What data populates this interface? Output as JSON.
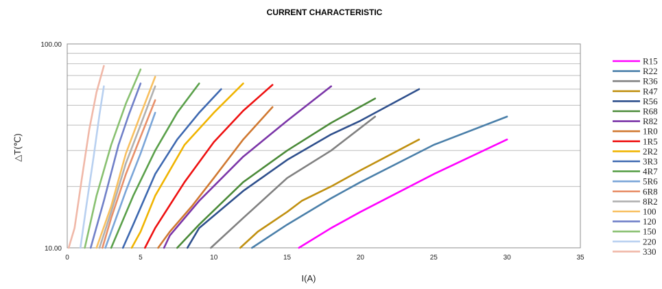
{
  "chart_data": {
    "type": "line",
    "title": "CURRENT CHARACTERISTIC",
    "xlabel": "I(A)",
    "ylabel": "△T(℃)",
    "xlim": [
      0,
      35
    ],
    "ylim": [
      10,
      100
    ],
    "yscale": "log",
    "x_ticks": [
      "0",
      "5",
      "10",
      "15",
      "20",
      "25",
      "30",
      "35"
    ],
    "y_ticks": [
      "10.00",
      "100.00"
    ],
    "grid": "horizontal",
    "legend_position": "right",
    "series": [
      {
        "name": "R15",
        "color": "#ff00ff",
        "points": [
          [
            15.8,
            10
          ],
          [
            18,
            12.5
          ],
          [
            20,
            15
          ],
          [
            25,
            23
          ],
          [
            30,
            34
          ]
        ]
      },
      {
        "name": "R22",
        "color": "#4a7fa9",
        "points": [
          [
            12.6,
            10
          ],
          [
            15,
            13
          ],
          [
            18,
            17.5
          ],
          [
            20,
            21
          ],
          [
            25,
            32
          ],
          [
            30,
            44
          ]
        ]
      },
      {
        "name": "R36",
        "color": "#808080",
        "points": [
          [
            9.8,
            10
          ],
          [
            12,
            14
          ],
          [
            15,
            22
          ],
          [
            18,
            30
          ],
          [
            21,
            44
          ]
        ]
      },
      {
        "name": "R47",
        "color": "#c09010",
        "points": [
          [
            11.8,
            10
          ],
          [
            13,
            12
          ],
          [
            15,
            15
          ],
          [
            16,
            17
          ],
          [
            18,
            20
          ],
          [
            20,
            24
          ],
          [
            24,
            34
          ]
        ]
      },
      {
        "name": "R56",
        "color": "#2e4f8c",
        "points": [
          [
            8.2,
            10
          ],
          [
            9,
            12.5
          ],
          [
            12,
            19
          ],
          [
            15,
            27
          ],
          [
            18,
            36
          ],
          [
            20,
            42
          ],
          [
            24,
            60
          ]
        ]
      },
      {
        "name": "R68",
        "color": "#4a8a38",
        "points": [
          [
            7.5,
            10
          ],
          [
            9,
            13
          ],
          [
            12,
            21
          ],
          [
            15,
            30
          ],
          [
            18,
            41
          ],
          [
            21,
            54
          ]
        ]
      },
      {
        "name": "R82",
        "color": "#7b35a8",
        "points": [
          [
            6.6,
            10
          ],
          [
            7,
            11.5
          ],
          [
            9,
            17
          ],
          [
            12,
            28
          ],
          [
            15,
            42
          ],
          [
            18,
            62
          ]
        ]
      },
      {
        "name": "1R0",
        "color": "#d07830",
        "points": [
          [
            6.2,
            10
          ],
          [
            7,
            12
          ],
          [
            8.5,
            16
          ],
          [
            10,
            22
          ],
          [
            12,
            34
          ],
          [
            14,
            49
          ]
        ]
      },
      {
        "name": "1R5",
        "color": "#ee1010",
        "points": [
          [
            5.3,
            10
          ],
          [
            6,
            12.5
          ],
          [
            8,
            21
          ],
          [
            10,
            33
          ],
          [
            12,
            47
          ],
          [
            14,
            63
          ]
        ]
      },
      {
        "name": "2R2",
        "color": "#f0b400",
        "points": [
          [
            4.4,
            10
          ],
          [
            5,
            12
          ],
          [
            6,
            18
          ],
          [
            8,
            32
          ],
          [
            10,
            46
          ],
          [
            12,
            64
          ]
        ]
      },
      {
        "name": "3R3",
        "color": "#3d68b0",
        "points": [
          [
            3.8,
            10
          ],
          [
            4.5,
            13
          ],
          [
            6,
            23
          ],
          [
            7.5,
            34
          ],
          [
            9,
            46
          ],
          [
            10.5,
            60
          ]
        ]
      },
      {
        "name": "4R7",
        "color": "#5aa04a",
        "points": [
          [
            3,
            10
          ],
          [
            4.5,
            18
          ],
          [
            6,
            30
          ],
          [
            7.5,
            46
          ],
          [
            9,
            64
          ]
        ]
      },
      {
        "name": "5R6",
        "color": "#7aa5d8",
        "points": [
          [
            2.6,
            10
          ],
          [
            4,
            19
          ],
          [
            5,
            29
          ],
          [
            6,
            46
          ]
        ]
      },
      {
        "name": "6R8",
        "color": "#e8906a",
        "points": [
          [
            2.4,
            10
          ],
          [
            3,
            14
          ],
          [
            4,
            23
          ],
          [
            5,
            35
          ],
          [
            6,
            53
          ]
        ]
      },
      {
        "name": "8R2",
        "color": "#b0b0b0",
        "points": [
          [
            2.2,
            10
          ],
          [
            3,
            15
          ],
          [
            4,
            26
          ],
          [
            5,
            40
          ],
          [
            6,
            62
          ]
        ]
      },
      {
        "name": "100",
        "color": "#f8c060",
        "points": [
          [
            2,
            10
          ],
          [
            3,
            16
          ],
          [
            4,
            29
          ],
          [
            5,
            45
          ],
          [
            6,
            69
          ]
        ]
      },
      {
        "name": "120",
        "color": "#7080c8",
        "points": [
          [
            1.6,
            10
          ],
          [
            2.5,
            17
          ],
          [
            3.5,
            32
          ],
          [
            4.2,
            45
          ],
          [
            5,
            64
          ]
        ]
      },
      {
        "name": "150",
        "color": "#88c070",
        "points": [
          [
            1.2,
            10
          ],
          [
            2,
            18
          ],
          [
            3,
            32
          ],
          [
            4,
            51
          ],
          [
            5,
            75
          ]
        ]
      },
      {
        "name": "220",
        "color": "#b8d0f0",
        "points": [
          [
            0.9,
            10
          ],
          [
            1.3,
            16
          ],
          [
            1.8,
            28
          ],
          [
            2.2,
            45
          ],
          [
            2.5,
            62
          ]
        ]
      },
      {
        "name": "330",
        "color": "#f0b8a8",
        "points": [
          [
            0.1,
            10
          ],
          [
            0.5,
            12.5
          ],
          [
            1,
            22
          ],
          [
            1.5,
            38
          ],
          [
            2,
            58
          ],
          [
            2.5,
            78
          ]
        ]
      }
    ]
  }
}
